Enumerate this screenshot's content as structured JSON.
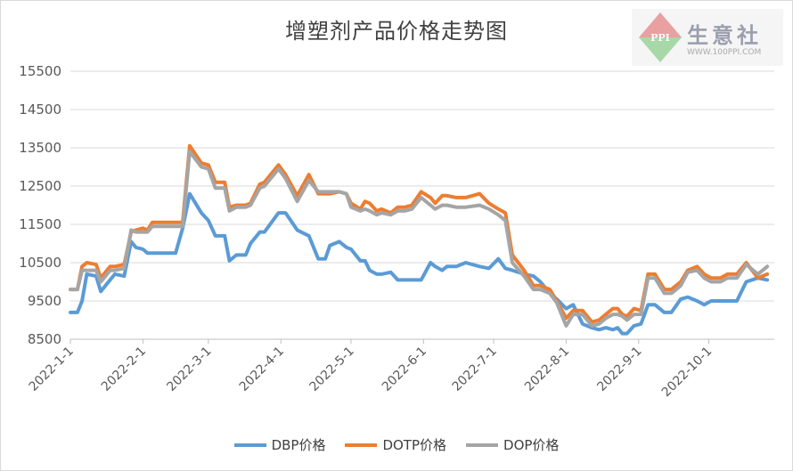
{
  "chart_data": {
    "type": "line",
    "title": "增塑剂产品价格走势图",
    "xlabel": "",
    "ylabel": "",
    "ylim": [
      8500,
      15500
    ],
    "yticks": [
      "15500",
      "14500",
      "13500",
      "12500",
      "11500",
      "10500",
      "9500",
      "8500"
    ],
    "xticks": [
      "2022-1-1",
      "2022-2-1",
      "2022-3-1",
      "2022-4-1",
      "2022-5-1",
      "2022-6-1",
      "2022-7-1",
      "2022-8-1",
      "2022-9-1",
      "2022-10-1"
    ],
    "grid": "horizontal",
    "legend_position": "bottom",
    "series": [
      {
        "name": "DBP价格",
        "color": "#5b9bd5",
        "x": [
          "2022-1-1",
          "2022-1-4",
          "2022-1-6",
          "2022-1-8",
          "2022-1-12",
          "2022-1-14",
          "2022-1-18",
          "2022-1-20",
          "2022-1-24",
          "2022-1-27",
          "2022-1-29",
          "2022-2-1",
          "2022-2-3",
          "2022-2-5",
          "2022-2-12",
          "2022-2-15",
          "2022-2-18",
          "2022-2-21",
          "2022-2-26",
          "2022-3-1",
          "2022-3-4",
          "2022-3-8",
          "2022-3-10",
          "2022-3-13",
          "2022-3-17",
          "2022-3-19",
          "2022-3-23",
          "2022-3-25",
          "2022-3-31",
          "2022-4-3",
          "2022-4-8",
          "2022-4-13",
          "2022-4-17",
          "2022-4-20",
          "2022-4-22",
          "2022-4-26",
          "2022-4-29",
          "2022-5-1",
          "2022-5-5",
          "2022-5-7",
          "2022-5-9",
          "2022-5-12",
          "2022-5-14",
          "2022-5-18",
          "2022-5-21",
          "2022-5-24",
          "2022-5-27",
          "2022-5-31",
          "2022-6-4",
          "2022-6-6",
          "2022-6-9",
          "2022-6-11",
          "2022-6-15",
          "2022-6-19",
          "2022-6-25",
          "2022-6-29",
          "2022-7-3",
          "2022-7-6",
          "2022-7-9",
          "2022-7-14",
          "2022-7-18",
          "2022-7-21",
          "2022-7-25",
          "2022-7-28",
          "2022-8-1",
          "2022-8-4",
          "2022-8-8",
          "2022-8-12",
          "2022-8-15",
          "2022-8-18",
          "2022-8-21",
          "2022-8-23",
          "2022-8-25",
          "2022-8-27",
          "2022-8-30",
          "2022-9-2",
          "2022-9-5",
          "2022-9-8",
          "2022-9-12",
          "2022-9-15",
          "2022-9-19",
          "2022-9-22",
          "2022-9-26",
          "2022-9-29",
          "2022-10-2",
          "2022-10-6",
          "2022-10-9",
          "2022-10-13",
          "2022-10-17",
          "2022-10-22",
          "2022-10-26"
        ],
        "values": [
          9200,
          9200,
          9500,
          10200,
          10150,
          9750,
          10050,
          10200,
          10150,
          11050,
          10900,
          10850,
          10750,
          10750,
          10750,
          10750,
          11400,
          12300,
          11800,
          11600,
          11200,
          11200,
          10550,
          10700,
          10700,
          11000,
          11300,
          11300,
          11800,
          11800,
          11350,
          11200,
          10600,
          10600,
          10950,
          11050,
          10900,
          10850,
          10550,
          10550,
          10300,
          10200,
          10200,
          10250,
          10050,
          10050,
          10050,
          10050,
          10500,
          10400,
          10300,
          10400,
          10400,
          10500,
          10400,
          10350,
          10600,
          10350,
          10300,
          10200,
          10150,
          10000,
          9700,
          9550,
          9300,
          9400,
          8900,
          8800,
          8750,
          8800,
          8750,
          8800,
          8650,
          8650,
          8850,
          8900,
          9400,
          9400,
          9200,
          9200,
          9550,
          9600,
          9500,
          9400,
          9500,
          9500,
          9500,
          9500,
          10000,
          10100,
          10050
        ]
      },
      {
        "name": "DOTP价格",
        "color": "#ed7d31",
        "x": [
          "2022-1-1",
          "2022-1-4",
          "2022-1-6",
          "2022-1-8",
          "2022-1-12",
          "2022-1-14",
          "2022-1-18",
          "2022-1-20",
          "2022-1-24",
          "2022-1-27",
          "2022-1-29",
          "2022-2-1",
          "2022-2-3",
          "2022-2-5",
          "2022-2-12",
          "2022-2-15",
          "2022-2-18",
          "2022-2-21",
          "2022-2-26",
          "2022-3-1",
          "2022-3-4",
          "2022-3-8",
          "2022-3-10",
          "2022-3-13",
          "2022-3-17",
          "2022-3-19",
          "2022-3-23",
          "2022-3-25",
          "2022-3-31",
          "2022-4-3",
          "2022-4-8",
          "2022-4-13",
          "2022-4-17",
          "2022-4-20",
          "2022-4-22",
          "2022-4-26",
          "2022-4-29",
          "2022-5-1",
          "2022-5-5",
          "2022-5-7",
          "2022-5-9",
          "2022-5-12",
          "2022-5-14",
          "2022-5-18",
          "2022-5-21",
          "2022-5-24",
          "2022-5-27",
          "2022-5-31",
          "2022-6-4",
          "2022-6-6",
          "2022-6-9",
          "2022-6-11",
          "2022-6-15",
          "2022-6-19",
          "2022-6-25",
          "2022-6-29",
          "2022-7-3",
          "2022-7-6",
          "2022-7-9",
          "2022-7-14",
          "2022-7-18",
          "2022-7-21",
          "2022-7-25",
          "2022-7-28",
          "2022-8-1",
          "2022-8-4",
          "2022-8-8",
          "2022-8-12",
          "2022-8-15",
          "2022-8-18",
          "2022-8-21",
          "2022-8-23",
          "2022-8-25",
          "2022-8-27",
          "2022-8-30",
          "2022-9-2",
          "2022-9-5",
          "2022-9-8",
          "2022-9-12",
          "2022-9-15",
          "2022-9-19",
          "2022-9-22",
          "2022-9-26",
          "2022-9-29",
          "2022-10-2",
          "2022-10-6",
          "2022-10-9",
          "2022-10-13",
          "2022-10-17",
          "2022-10-22",
          "2022-10-26"
        ],
        "values": [
          9800,
          9800,
          10400,
          10500,
          10450,
          10100,
          10400,
          10400,
          10450,
          11300,
          11350,
          11400,
          11350,
          11550,
          11550,
          11550,
          11550,
          13550,
          13100,
          13050,
          12600,
          12600,
          11950,
          12000,
          12000,
          12050,
          12550,
          12600,
          13050,
          12800,
          12250,
          12800,
          12300,
          12300,
          12300,
          12350,
          12300,
          12050,
          11900,
          12100,
          12050,
          11850,
          11900,
          11800,
          11950,
          11950,
          12000,
          12350,
          12200,
          12050,
          12250,
          12250,
          12200,
          12200,
          12300,
          12050,
          11900,
          11800,
          10700,
          10300,
          9900,
          9900,
          9800,
          9500,
          9050,
          9250,
          9250,
          8950,
          9000,
          9150,
          9300,
          9300,
          9150,
          9100,
          9300,
          9250,
          10200,
          10200,
          9800,
          9800,
          10000,
          10300,
          10400,
          10200,
          10100,
          10100,
          10200,
          10200,
          10500,
          10100,
          10200
        ]
      },
      {
        "name": "DOP价格",
        "color": "#a5a5a5",
        "x": [
          "2022-1-1",
          "2022-1-4",
          "2022-1-6",
          "2022-1-8",
          "2022-1-12",
          "2022-1-14",
          "2022-1-18",
          "2022-1-20",
          "2022-1-24",
          "2022-1-27",
          "2022-1-29",
          "2022-2-1",
          "2022-2-3",
          "2022-2-5",
          "2022-2-12",
          "2022-2-15",
          "2022-2-18",
          "2022-2-21",
          "2022-2-26",
          "2022-3-1",
          "2022-3-4",
          "2022-3-8",
          "2022-3-10",
          "2022-3-13",
          "2022-3-17",
          "2022-3-19",
          "2022-3-23",
          "2022-3-25",
          "2022-3-31",
          "2022-4-3",
          "2022-4-8",
          "2022-4-13",
          "2022-4-17",
          "2022-4-20",
          "2022-4-22",
          "2022-4-26",
          "2022-4-29",
          "2022-5-1",
          "2022-5-5",
          "2022-5-7",
          "2022-5-9",
          "2022-5-12",
          "2022-5-14",
          "2022-5-18",
          "2022-5-21",
          "2022-5-24",
          "2022-5-27",
          "2022-5-31",
          "2022-6-4",
          "2022-6-6",
          "2022-6-9",
          "2022-6-11",
          "2022-6-15",
          "2022-6-19",
          "2022-6-25",
          "2022-6-29",
          "2022-7-3",
          "2022-7-6",
          "2022-7-9",
          "2022-7-14",
          "2022-7-18",
          "2022-7-21",
          "2022-7-25",
          "2022-7-28",
          "2022-8-1",
          "2022-8-4",
          "2022-8-8",
          "2022-8-12",
          "2022-8-15",
          "2022-8-18",
          "2022-8-21",
          "2022-8-23",
          "2022-8-25",
          "2022-8-27",
          "2022-8-30",
          "2022-9-2",
          "2022-9-5",
          "2022-9-8",
          "2022-9-12",
          "2022-9-15",
          "2022-9-19",
          "2022-9-22",
          "2022-9-26",
          "2022-9-29",
          "2022-10-2",
          "2022-10-6",
          "2022-10-9",
          "2022-10-13",
          "2022-10-17",
          "2022-10-22",
          "2022-10-26"
        ],
        "values": [
          9800,
          9800,
          10300,
          10300,
          10300,
          10000,
          10300,
          10300,
          10350,
          11350,
          11300,
          11300,
          11300,
          11450,
          11450,
          11450,
          11450,
          13400,
          13000,
          12950,
          12450,
          12450,
          11850,
          11950,
          11950,
          12000,
          12450,
          12500,
          12950,
          12700,
          12100,
          12650,
          12350,
          12350,
          12350,
          12350,
          12300,
          11950,
          11850,
          11900,
          11850,
          11750,
          11800,
          11750,
          11850,
          11850,
          11900,
          12200,
          12000,
          11900,
          12000,
          12000,
          11950,
          11950,
          12000,
          11900,
          11750,
          11600,
          10500,
          10150,
          9800,
          9800,
          9700,
          9450,
          8850,
          9150,
          9150,
          8850,
          8900,
          9050,
          9150,
          9150,
          9100,
          9000,
          9150,
          9150,
          10100,
          10100,
          9700,
          9700,
          9900,
          10250,
          10300,
          10100,
          10000,
          10000,
          10100,
          10100,
          10450,
          10200,
          10400
        ]
      }
    ]
  },
  "watermark": {
    "name": "生意社",
    "badge": "PPI",
    "url": "WWW.100PPI.COM"
  }
}
